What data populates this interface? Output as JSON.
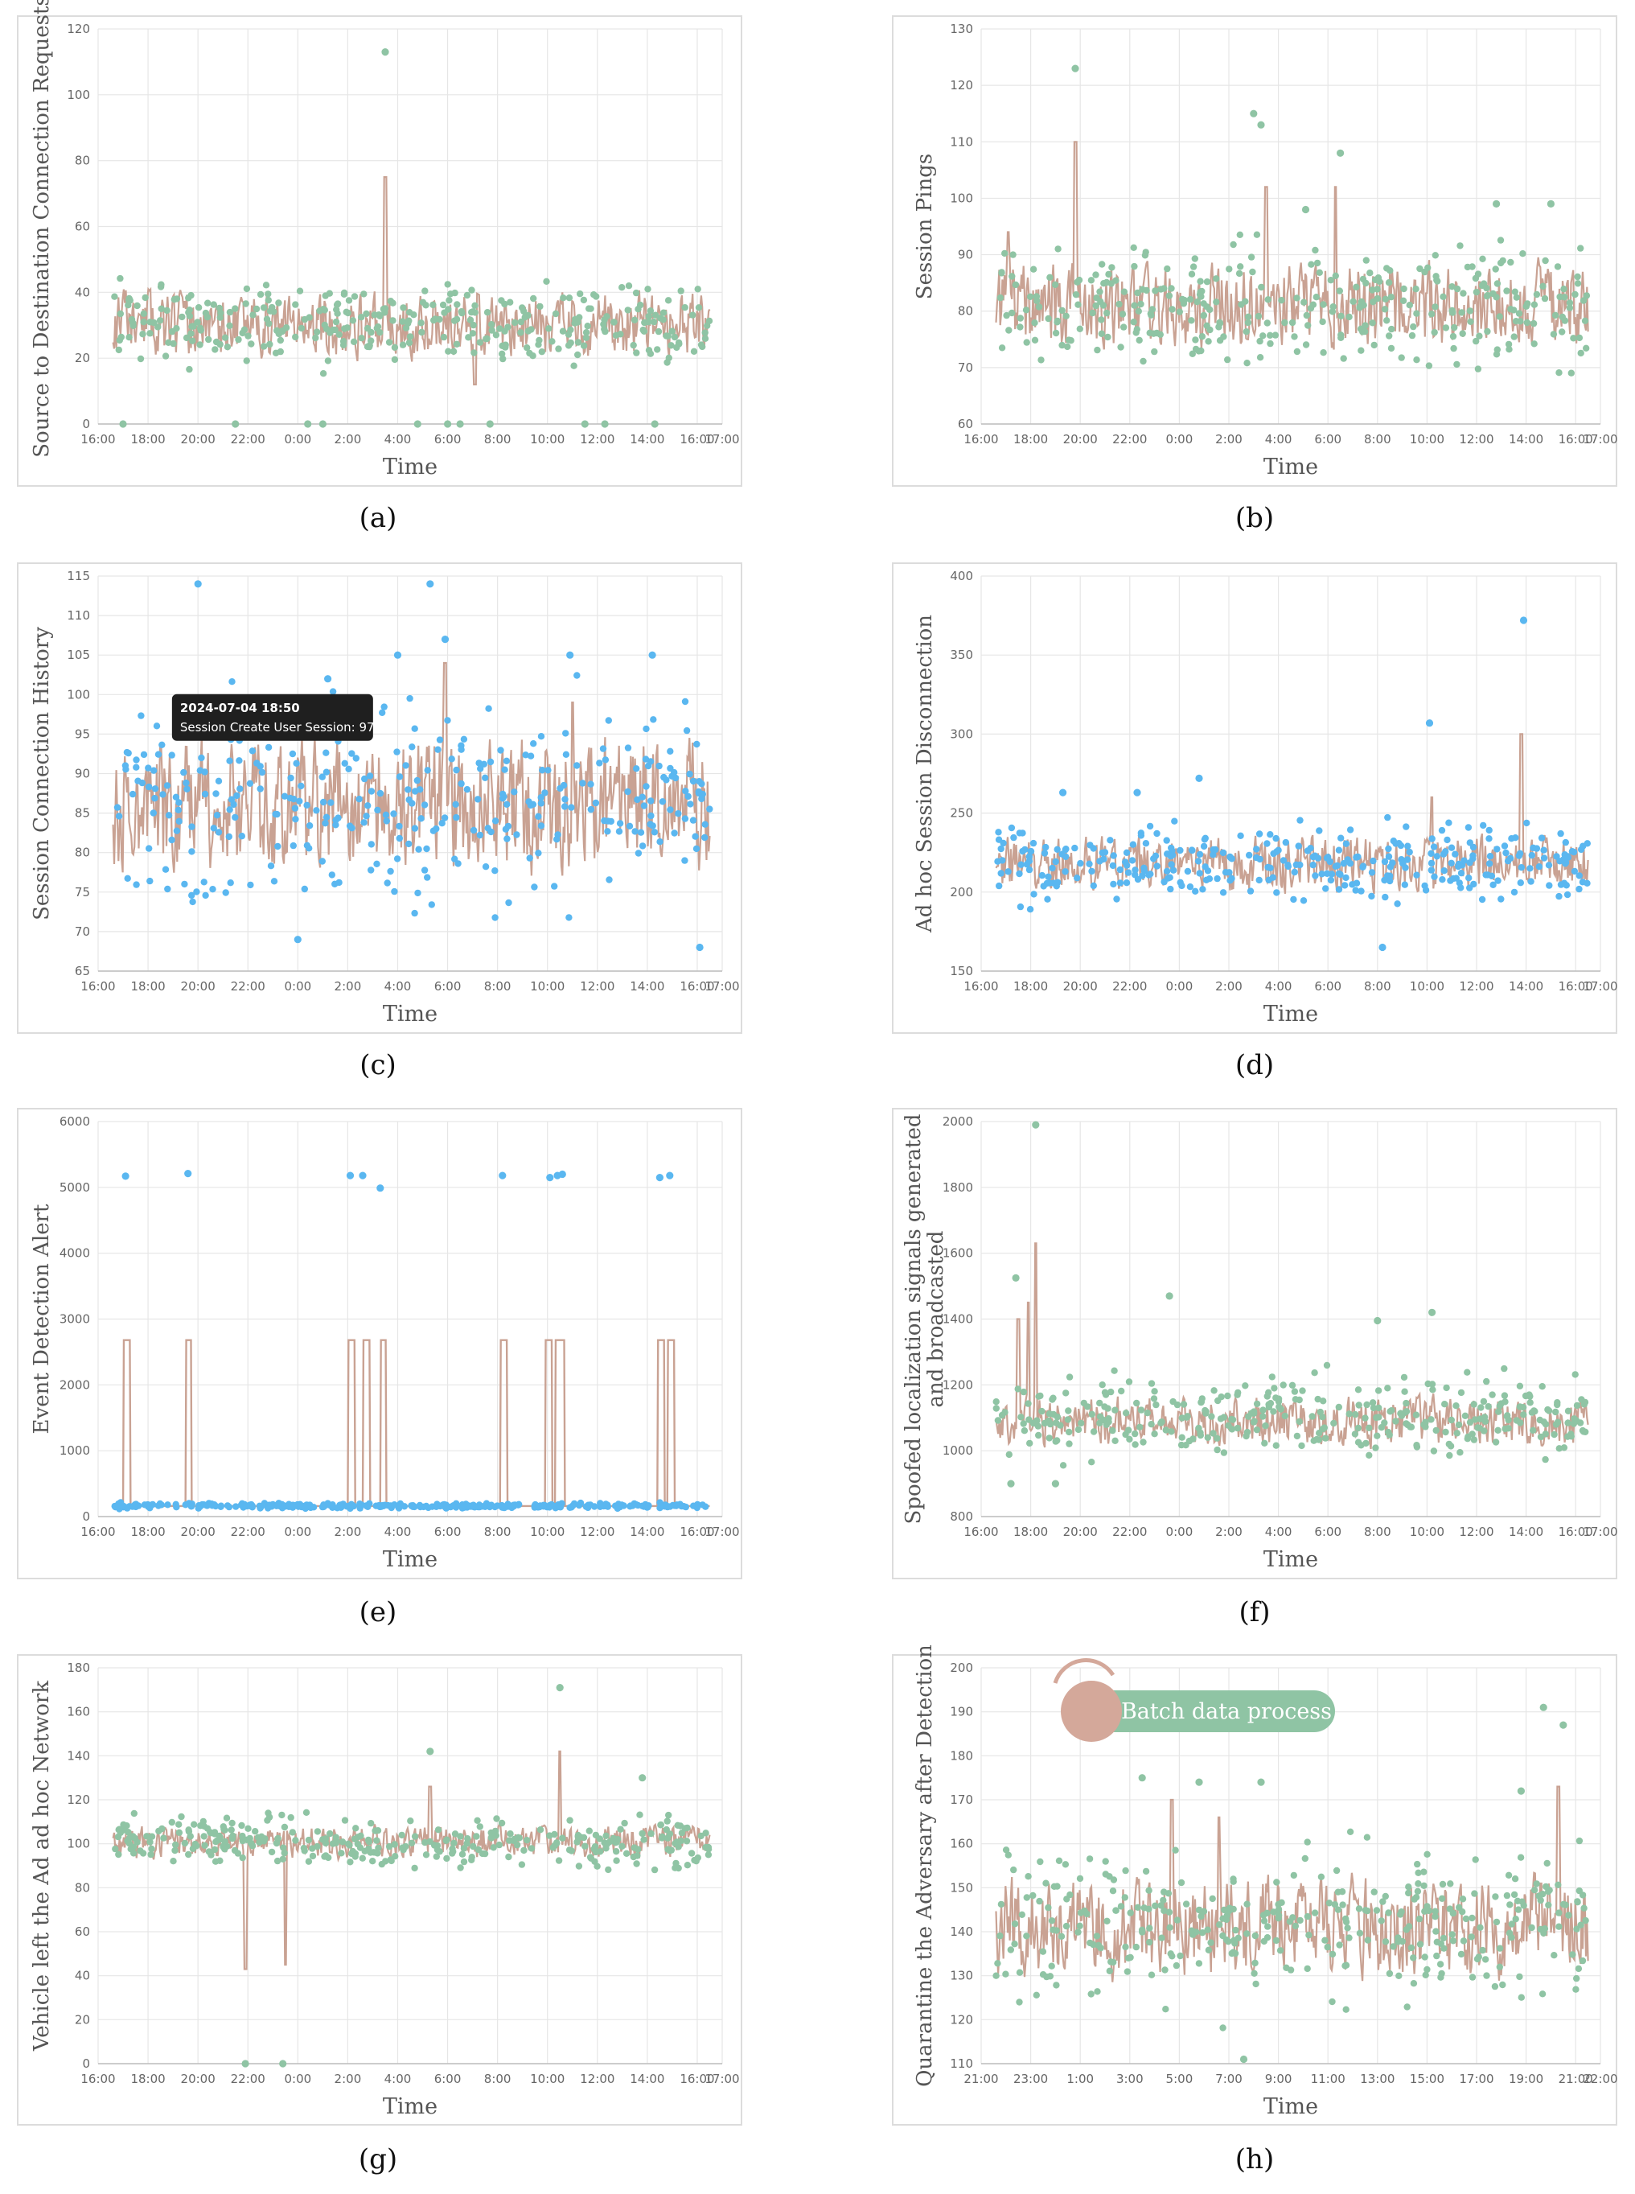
{
  "colors": {
    "line": "#c9a293",
    "dots_green": "#8fc4a4",
    "dots_blue": "#5ab7f0",
    "badge_green": "#8fc4a4",
    "badge_circle": "#d4a89a"
  },
  "chart_data": [
    {
      "panel": "(a)",
      "type": "line+scatter",
      "ylabel": "Source to Destination Connection Requests",
      "xlabel": "Time",
      "ylim": [
        0,
        120
      ],
      "yticks": [
        0,
        20,
        40,
        60,
        80,
        100,
        120
      ],
      "xlim": [
        0,
        25
      ],
      "xticks": [
        "16:00",
        "18:00",
        "20:00",
        "22:00",
        "0:00",
        "2:00",
        "4:00",
        "6:00",
        "8:00",
        "10:00",
        "12:00",
        "14:00",
        "16:00",
        "17:00"
      ],
      "dot_color": "green",
      "line": {
        "seed": 11,
        "base": 30,
        "amp": 8,
        "spikes": [
          [
            11.5,
            75
          ],
          [
            15.1,
            12
          ]
        ]
      },
      "dots": {
        "seed": 21,
        "base": 31,
        "amp": 9,
        "outliers": [
          [
            11.5,
            113
          ],
          [
            1.0,
            0
          ],
          [
            5.5,
            0
          ],
          [
            8.4,
            0
          ],
          [
            9.0,
            0
          ],
          [
            12.8,
            0
          ],
          [
            14.0,
            0
          ],
          [
            14.5,
            0
          ],
          [
            15.7,
            0
          ],
          [
            22.3,
            0
          ],
          [
            20.3,
            0
          ],
          [
            19.5,
            0
          ]
        ]
      }
    },
    {
      "panel": "(b)",
      "type": "line+scatter",
      "ylabel": "Session Pings",
      "xlabel": "Time",
      "ylim": [
        60,
        130
      ],
      "yticks": [
        60,
        70,
        80,
        90,
        100,
        110,
        120,
        130
      ],
      "xlim": [
        0,
        25
      ],
      "xticks": [
        "16:00",
        "18:00",
        "20:00",
        "22:00",
        "0:00",
        "2:00",
        "4:00",
        "6:00",
        "8:00",
        "10:00",
        "12:00",
        "14:00",
        "16:00",
        "17:00"
      ],
      "dot_color": "green",
      "line": {
        "seed": 12,
        "base": 81,
        "amp": 6,
        "spikes": [
          [
            3.8,
            110
          ],
          [
            11.5,
            102
          ],
          [
            14.3,
            102
          ],
          [
            1.1,
            94
          ]
        ]
      },
      "dots": {
        "seed": 22,
        "base": 81,
        "amp": 8,
        "outliers": [
          [
            3.8,
            123
          ],
          [
            11.0,
            115
          ],
          [
            11.3,
            113
          ],
          [
            14.5,
            108
          ],
          [
            20.8,
            99
          ],
          [
            23.0,
            99
          ],
          [
            13.1,
            98
          ]
        ]
      }
    },
    {
      "panel": "(c)",
      "type": "line+scatter",
      "ylabel": "Session Connection History",
      "xlabel": "Time",
      "ylim": [
        65,
        115
      ],
      "yticks": [
        65,
        70,
        75,
        80,
        85,
        90,
        95,
        100,
        105,
        110,
        115
      ],
      "xlim": [
        0,
        25
      ],
      "xticks": [
        "16:00",
        "18:00",
        "20:00",
        "22:00",
        "0:00",
        "2:00",
        "4:00",
        "6:00",
        "8:00",
        "10:00",
        "12:00",
        "14:00",
        "16:00",
        "17:00"
      ],
      "dot_color": "blue",
      "line": {
        "seed": 13,
        "base": 86,
        "amp": 7,
        "spikes": [
          [
            13.9,
            104
          ],
          [
            19.0,
            99
          ]
        ]
      },
      "dots": {
        "seed": 23,
        "base": 86,
        "amp": 9,
        "outliers": [
          [
            4.0,
            114
          ],
          [
            13.3,
            114
          ],
          [
            13.9,
            107
          ],
          [
            18.9,
            105
          ],
          [
            22.2,
            105
          ],
          [
            12.0,
            105
          ],
          [
            9.2,
            102
          ],
          [
            24.1,
            68
          ],
          [
            8.0,
            69
          ]
        ]
      },
      "tooltip": {
        "title": "2024-07-04 18:50",
        "text": "Session Create User Session: 97",
        "x": 2.83,
        "y": 97
      }
    },
    {
      "panel": "(d)",
      "type": "line+scatter",
      "ylabel": "Ad hoc Session Disconnection",
      "xlabel": "Time",
      "ylim": [
        150,
        400
      ],
      "yticks": [
        150,
        200,
        250,
        300,
        350,
        400
      ],
      "xlim": [
        0,
        25
      ],
      "xticks": [
        "16:00",
        "18:00",
        "20:00",
        "22:00",
        "0:00",
        "2:00",
        "4:00",
        "6:00",
        "8:00",
        "10:00",
        "12:00",
        "14:00",
        "16:00",
        "17:00"
      ],
      "dot_color": "blue",
      "line": {
        "seed": 14,
        "base": 218,
        "amp": 14,
        "spikes": [
          [
            21.8,
            300
          ],
          [
            18.2,
            260
          ]
        ]
      },
      "dots": {
        "seed": 24,
        "base": 218,
        "amp": 18,
        "outliers": [
          [
            21.9,
            372
          ],
          [
            18.1,
            307
          ],
          [
            8.8,
            272
          ],
          [
            16.2,
            165
          ],
          [
            6.3,
            263
          ],
          [
            3.3,
            263
          ]
        ]
      }
    },
    {
      "panel": "(e)",
      "type": "line+scatter",
      "ylabel": "Event Detection Alert",
      "xlabel": "Time",
      "ylim": [
        0,
        6000
      ],
      "yticks": [
        0,
        1000,
        2000,
        3000,
        4000,
        5000,
        6000
      ],
      "xlim": [
        0,
        25
      ],
      "xticks": [
        "16:00",
        "18:00",
        "20:00",
        "22:00",
        "0:00",
        "2:00",
        "4:00",
        "6:00",
        "8:00",
        "10:00",
        "12:00",
        "14:00",
        "16:00",
        "17:00"
      ],
      "dot_color": "blue",
      "pulses": [
        [
          1.0,
          1.3
        ],
        [
          3.5,
          3.75
        ],
        [
          10.0,
          10.3
        ],
        [
          10.6,
          10.9
        ],
        [
          11.3,
          11.55
        ],
        [
          16.1,
          16.4
        ],
        [
          17.9,
          18.2
        ],
        [
          18.3,
          18.7
        ],
        [
          22.4,
          22.7
        ],
        [
          22.8,
          23.1
        ]
      ],
      "pulse_height": 2680,
      "baseline": 160,
      "dots": {
        "seed": 25,
        "base": 165,
        "amp": 30,
        "outliers": [
          [
            1.1,
            5170
          ],
          [
            3.6,
            5210
          ],
          [
            10.1,
            5180
          ],
          [
            10.6,
            5180
          ],
          [
            11.3,
            4990
          ],
          [
            16.2,
            5180
          ],
          [
            18.1,
            5150
          ],
          [
            18.4,
            5180
          ],
          [
            18.6,
            5200
          ],
          [
            22.5,
            5150
          ],
          [
            22.9,
            5180
          ]
        ]
      }
    },
    {
      "panel": "(f)",
      "type": "line+scatter",
      "ylabel": "Spoofed localization signals generated and broadcasted",
      "xlabel": "Time",
      "ylim": [
        800,
        2000
      ],
      "yticks": [
        800,
        1000,
        1200,
        1400,
        1600,
        1800,
        2000
      ],
      "xlim": [
        0,
        25
      ],
      "xticks": [
        "16:00",
        "18:00",
        "20:00",
        "22:00",
        "0:00",
        "2:00",
        "4:00",
        "6:00",
        "8:00",
        "10:00",
        "12:00",
        "14:00",
        "16:00",
        "17:00"
      ],
      "dot_color": "green",
      "line": {
        "seed": 16,
        "base": 1090,
        "amp": 60,
        "spikes": [
          [
            2.2,
            1630
          ],
          [
            1.9,
            1450
          ],
          [
            1.5,
            1400
          ]
        ]
      },
      "dots": {
        "seed": 26,
        "base": 1100,
        "amp": 90,
        "outliers": [
          [
            2.2,
            1990
          ],
          [
            1.4,
            1525
          ],
          [
            7.6,
            1470
          ],
          [
            18.2,
            1420
          ],
          [
            16.0,
            1395
          ],
          [
            1.2,
            900
          ],
          [
            3.0,
            900
          ]
        ]
      }
    },
    {
      "panel": "(g)",
      "type": "line+scatter",
      "ylabel": "Vehicle left the Ad ad hoc Network",
      "xlabel": "Time",
      "ylim": [
        0,
        180
      ],
      "yticks": [
        0,
        20,
        40,
        60,
        80,
        100,
        120,
        140,
        160,
        180
      ],
      "xlim": [
        0,
        25
      ],
      "xticks": [
        "16:00",
        "18:00",
        "20:00",
        "22:00",
        "0:00",
        "2:00",
        "4:00",
        "6:00",
        "8:00",
        "10:00",
        "12:00",
        "14:00",
        "16:00",
        "17:00"
      ],
      "dot_color": "green",
      "line": {
        "seed": 17,
        "base": 101,
        "amp": 6,
        "dips": [
          [
            5.9,
            43
          ],
          [
            7.5,
            45
          ]
        ],
        "spikes": [
          [
            18.5,
            142
          ],
          [
            13.3,
            126
          ]
        ]
      },
      "dots": {
        "seed": 27,
        "base": 101,
        "amp": 8,
        "outliers": [
          [
            18.5,
            171
          ],
          [
            13.3,
            142
          ],
          [
            21.8,
            130
          ],
          [
            5.9,
            0
          ],
          [
            7.4,
            0
          ]
        ]
      }
    },
    {
      "panel": "(h)",
      "type": "line+scatter",
      "ylabel": "Quarantine the Adversary after Detection",
      "xlabel": "Time",
      "ylim": [
        110,
        200
      ],
      "yticks": [
        110,
        120,
        130,
        140,
        150,
        160,
        170,
        180,
        190,
        200
      ],
      "xlim": [
        0,
        25
      ],
      "xticks": [
        "21:00",
        "23:00",
        "1:00",
        "3:00",
        "5:00",
        "7:00",
        "9:00",
        "11:00",
        "13:00",
        "15:00",
        "17:00",
        "19:00",
        "21:00",
        "22:00"
      ],
      "dot_color": "green",
      "line": {
        "seed": 18,
        "base": 141,
        "amp": 9,
        "spikes": [
          [
            23.3,
            173
          ],
          [
            7.7,
            170
          ],
          [
            9.6,
            166
          ]
        ]
      },
      "dots": {
        "seed": 28,
        "base": 141,
        "amp": 13,
        "outliers": [
          [
            22.7,
            191
          ],
          [
            23.5,
            187
          ],
          [
            6.5,
            175
          ],
          [
            8.8,
            174
          ],
          [
            11.3,
            174
          ],
          [
            21.8,
            172
          ],
          [
            10.6,
            111
          ]
        ]
      },
      "badge": "Batch data process"
    }
  ],
  "panel_labels": [
    "(a)",
    "(b)",
    "(c)",
    "(d)",
    "(e)",
    "(f)",
    "(g)",
    "(h)"
  ]
}
